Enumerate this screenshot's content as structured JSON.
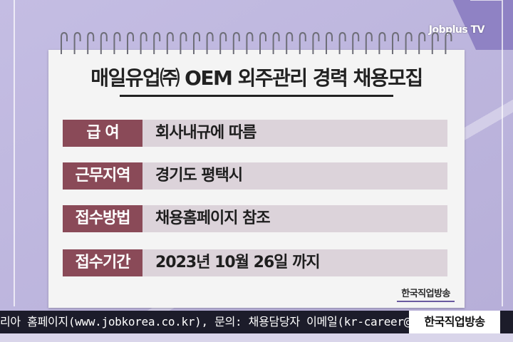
{
  "channel": {
    "logo_text": "Jobplus TV",
    "stamp_text": "한국직업방송",
    "ticker_tag": "한국직업방송"
  },
  "notice": {
    "title": "매일유업㈜ OEM 외주관리 경력 채용모집",
    "rows": [
      {
        "label": "급  여",
        "value": "회사내규에 따름"
      },
      {
        "label": "근무지역",
        "value": "경기도 평택시"
      },
      {
        "label": "접수방법",
        "value": "채용홈페이지 참조"
      },
      {
        "label": "접수기간",
        "value": "2023년 10월 26일 까지"
      }
    ]
  },
  "ticker": {
    "text": "리아 홈페이지(www.jobkorea.co.kr), 문의: 채용담당자 이메일(kr-career@a"
  },
  "colors": {
    "label_bg": "#8a4a58",
    "value_bg": "#dcd3da",
    "background": "#b9b1da",
    "ticker_bg": "#1c1c2a"
  }
}
